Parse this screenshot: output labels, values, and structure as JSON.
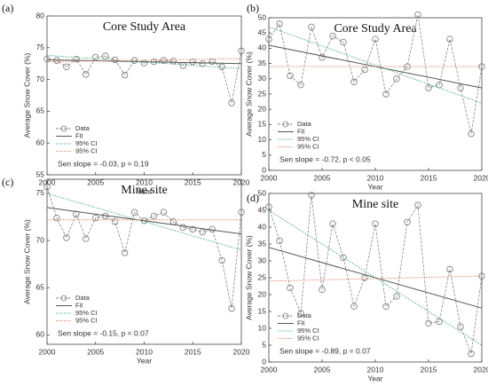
{
  "chart_data": [
    {
      "type": "line",
      "panel": "(a)",
      "title": "Core Study Area",
      "xlabel": "Year",
      "ylabel": "Average Snow Cover (%)",
      "x": [
        2000,
        2001,
        2002,
        2003,
        2004,
        2005,
        2006,
        2007,
        2008,
        2009,
        2010,
        2011,
        2012,
        2013,
        2014,
        2015,
        2016,
        2017,
        2018,
        2019,
        2020
      ],
      "xlim": [
        2000,
        2020
      ],
      "xticks": [
        2000,
        2005,
        2010,
        2015,
        2020
      ],
      "ylim": [
        55,
        80
      ],
      "yticks": [
        55,
        60,
        65,
        70,
        75,
        80
      ],
      "series": [
        {
          "name": "Data",
          "color": "#888888",
          "values": [
            73.2,
            73.0,
            72.0,
            73.2,
            70.8,
            73.5,
            73.7,
            73.1,
            70.7,
            73.0,
            72.6,
            72.8,
            73.0,
            72.9,
            72.2,
            72.8,
            72.5,
            72.8,
            72.0,
            66.3,
            74.5
          ]
        },
        {
          "name": "Fit",
          "color": "#555555",
          "x": [
            2000,
            2020
          ],
          "values": [
            73.1,
            72.5
          ]
        },
        {
          "name": "95% CI",
          "color": "#4fae8f",
          "x": [
            2000,
            2020
          ],
          "values": [
            73.8,
            71.7
          ]
        },
        {
          "name": "95% CI",
          "color": "#e5876a",
          "x": [
            2000,
            2020
          ],
          "values": [
            72.8,
            73.3
          ]
        }
      ],
      "annotation": "Sen slope = -0.03, p = 0.19"
    },
    {
      "type": "line",
      "panel": "(b)",
      "title": "Core Study Area",
      "xlabel": "Year",
      "ylabel": "Average Snow Cover (%)",
      "x": [
        2000,
        2001,
        2002,
        2003,
        2004,
        2005,
        2006,
        2007,
        2008,
        2009,
        2010,
        2011,
        2012,
        2013,
        2014,
        2015,
        2016,
        2017,
        2018,
        2019,
        2020
      ],
      "xlim": [
        2000,
        2020
      ],
      "xticks": [
        2000,
        2005,
        2010,
        2015,
        2020
      ],
      "ylim": [
        0,
        50
      ],
      "yticks": [
        0,
        5,
        10,
        15,
        20,
        25,
        30,
        35,
        40,
        45,
        50
      ],
      "series": [
        {
          "name": "Data",
          "color": "#888888",
          "values": [
            43,
            48,
            31,
            28,
            47,
            37,
            44,
            42,
            29,
            33,
            43,
            25,
            30,
            34,
            51,
            27,
            28,
            43,
            27,
            12,
            34
          ]
        },
        {
          "name": "Fit",
          "color": "#555555",
          "x": [
            2000,
            2020
          ],
          "values": [
            41,
            27
          ]
        },
        {
          "name": "95% CI",
          "color": "#4fae8f",
          "x": [
            2000,
            2020
          ],
          "values": [
            47,
            22
          ]
        },
        {
          "name": "95% CI",
          "color": "#e5876a",
          "x": [
            2000,
            2020
          ],
          "values": [
            34,
            34
          ]
        }
      ],
      "annotation": "Sen slope = -0.72, p < 0.05"
    },
    {
      "type": "line",
      "panel": "(c)",
      "title": "Mine site",
      "xlabel": "Year",
      "ylabel": "Average Snow Cover (%)",
      "x": [
        2000,
        2001,
        2002,
        2003,
        2004,
        2005,
        2006,
        2007,
        2008,
        2009,
        2010,
        2011,
        2012,
        2013,
        2014,
        2015,
        2016,
        2017,
        2018,
        2019,
        2020
      ],
      "xlim": [
        2000,
        2020
      ],
      "xticks": [
        2000,
        2005,
        2010,
        2015,
        2020
      ],
      "ylim": [
        59,
        76.5
      ],
      "yticks": [
        60,
        65,
        70,
        75
      ],
      "series": [
        {
          "name": "Data",
          "color": "#888888",
          "values": [
            75.7,
            72.4,
            70.3,
            72.8,
            70.2,
            72.4,
            72.6,
            72.0,
            68.7,
            73.0,
            72.1,
            72.6,
            73.0,
            72.0,
            71.4,
            71.2,
            70.9,
            71.2,
            67.9,
            62.8,
            73.0
          ]
        },
        {
          "name": "Fit",
          "color": "#555555",
          "x": [
            2000,
            2020
          ],
          "values": [
            73.5,
            70.7
          ]
        },
        {
          "name": "95% CI",
          "color": "#4fae8f",
          "x": [
            2000,
            2020
          ],
          "values": [
            75,
            69
          ]
        },
        {
          "name": "95% CI",
          "color": "#e5876a",
          "x": [
            2000,
            2020
          ],
          "values": [
            72.2,
            72.2
          ]
        }
      ],
      "annotation": "Sen slope = -0.15, p = 0.07"
    },
    {
      "type": "line",
      "panel": "(d)",
      "title": "Mine site",
      "xlabel": "Year",
      "ylabel": "Average Snow Cover (%)",
      "x": [
        2000,
        2001,
        2002,
        2003,
        2004,
        2005,
        2006,
        2007,
        2008,
        2009,
        2010,
        2011,
        2012,
        2013,
        2014,
        2015,
        2016,
        2017,
        2018,
        2019,
        2020
      ],
      "xlim": [
        2000,
        2020
      ],
      "xticks": [
        2000,
        2005,
        2010,
        2015,
        2020
      ],
      "ylim": [
        0,
        50
      ],
      "yticks": [
        0,
        5,
        10,
        15,
        20,
        25,
        30,
        35,
        40,
        45,
        50
      ],
      "series": [
        {
          "name": "Data",
          "color": "#888888",
          "values": [
            46,
            36,
            22,
            14.5,
            49.5,
            21.5,
            41,
            31,
            16.5,
            25,
            41,
            16.5,
            19.5,
            41.5,
            46.5,
            11.5,
            12,
            27.5,
            10.5,
            2.5,
            25.5
          ]
        },
        {
          "name": "Fit",
          "color": "#555555",
          "x": [
            2000,
            2020
          ],
          "values": [
            34,
            16
          ]
        },
        {
          "name": "95% CI",
          "color": "#4fae8f",
          "x": [
            2000,
            2020
          ],
          "values": [
            45,
            5
          ]
        },
        {
          "name": "95% CI",
          "color": "#e5876a",
          "x": [
            2000,
            2020
          ],
          "values": [
            24,
            25.5
          ]
        }
      ],
      "annotation": "Sen slope = -0.89, p = 0.07"
    }
  ]
}
